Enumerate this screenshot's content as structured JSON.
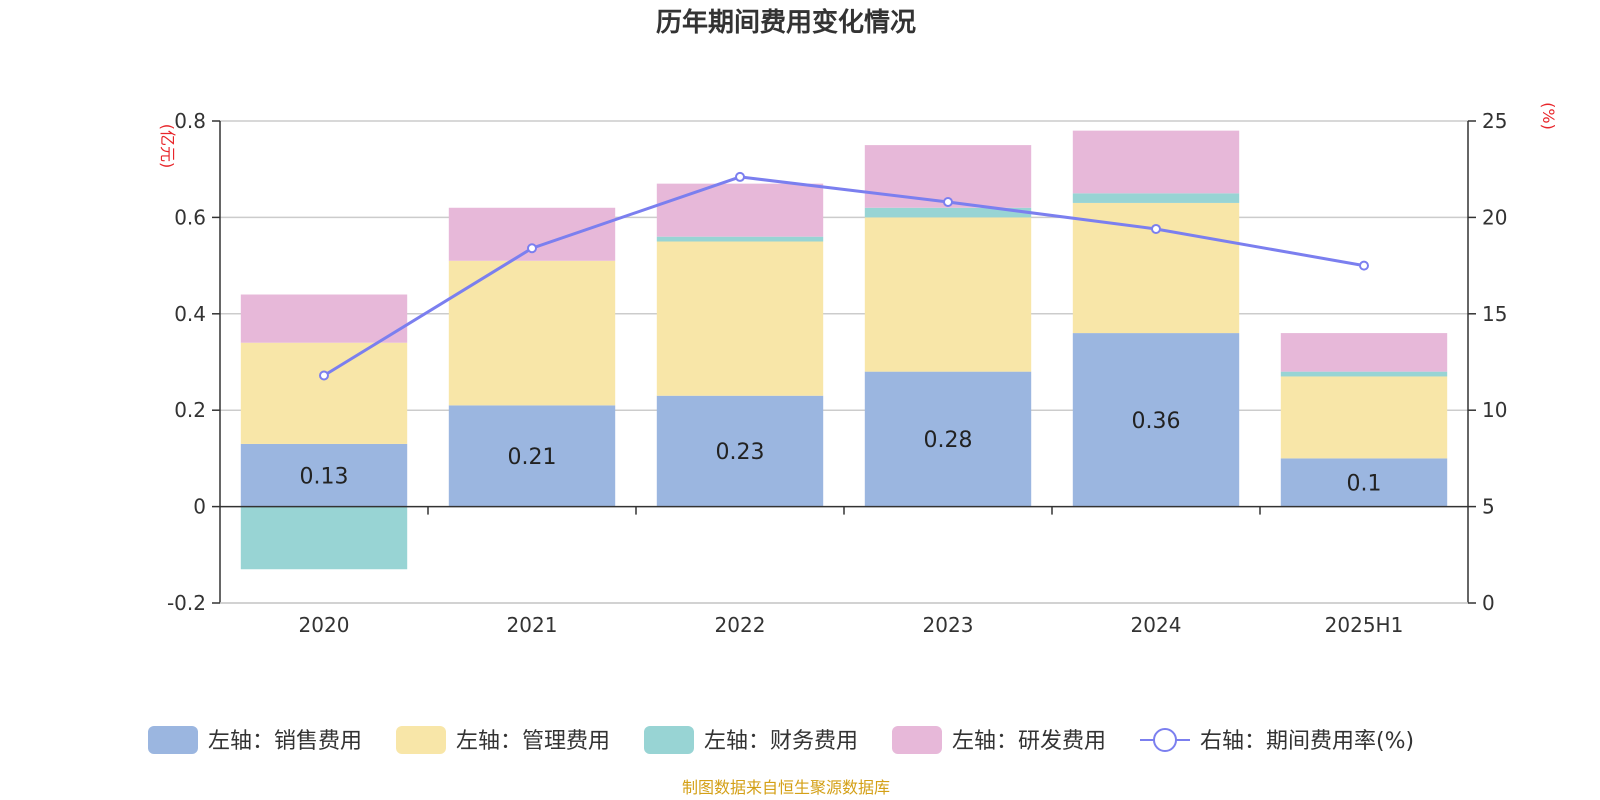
{
  "chart_data": {
    "type": "bar",
    "stacked": true,
    "title": "历年期间费用变化情况",
    "categories": [
      "2020",
      "2021",
      "2022",
      "2023",
      "2024",
      "2025H1"
    ],
    "left_axis": {
      "unit": "(亿元)",
      "ylim": [
        -0.2,
        0.8
      ],
      "ticks": [
        -0.2,
        0,
        0.2,
        0.4,
        0.6,
        0.8
      ],
      "tick_labels": [
        "-0.2",
        "0",
        "0.2",
        "0.4",
        "0.6",
        "0.8"
      ]
    },
    "right_axis": {
      "unit": "(%)",
      "ylim": [
        0,
        25
      ],
      "ticks": [
        0,
        5,
        10,
        15,
        20,
        25
      ],
      "tick_labels": [
        "0",
        "5",
        "10",
        "15",
        "20",
        "25"
      ]
    },
    "series": [
      {
        "name": "左轴：销售费用",
        "type": "bar",
        "axis": "left",
        "color": "#9bb6e0",
        "values": [
          0.13,
          0.21,
          0.23,
          0.28,
          0.36,
          0.1
        ],
        "labels": [
          "0.13",
          "0.21",
          "0.23",
          "0.28",
          "0.36",
          "0.1"
        ]
      },
      {
        "name": "左轴：管理费用",
        "type": "bar",
        "axis": "left",
        "color": "#f8e6a8",
        "values": [
          0.21,
          0.3,
          0.32,
          0.32,
          0.27,
          0.17
        ]
      },
      {
        "name": "左轴：财务费用",
        "type": "bar",
        "axis": "left",
        "color": "#98d4d4",
        "values": [
          -0.13,
          0.0,
          0.01,
          0.02,
          0.02,
          0.01
        ]
      },
      {
        "name": "左轴：研发费用",
        "type": "bar",
        "axis": "left",
        "color": "#e7b8d9",
        "values": [
          0.1,
          0.11,
          0.11,
          0.13,
          0.13,
          0.08
        ]
      },
      {
        "name": "右轴：期间费用率(%)",
        "type": "line",
        "axis": "right",
        "color": "#7b7fef",
        "values": [
          11.8,
          18.4,
          22.1,
          20.8,
          19.4,
          17.5
        ]
      }
    ],
    "grid": true,
    "legend_position": "bottom"
  },
  "source": "制图数据来自恒生聚源数据库"
}
